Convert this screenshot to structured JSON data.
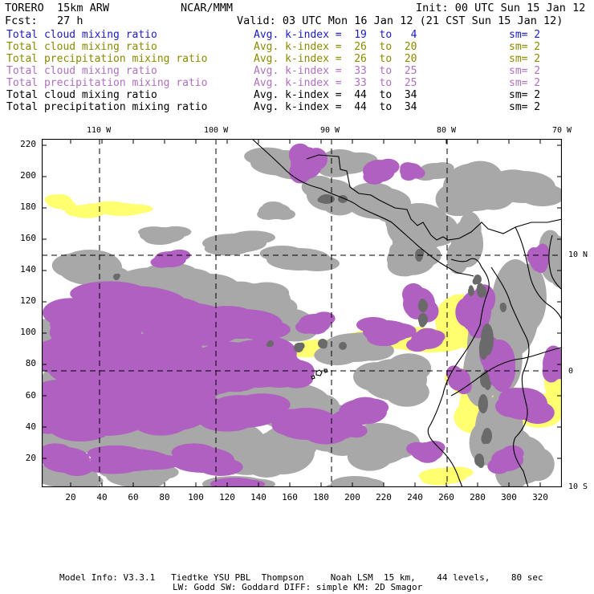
{
  "header": {
    "model": "TORERO  15km ARW",
    "org": "NCAR/MMM",
    "init": "Init: 00 UTC Sun 15 Jan 12",
    "fcst": "Fcst:   27 h",
    "valid": "Valid: 03 UTC Mon 16 Jan 12 (21 CST Sun 15 Jan 12)"
  },
  "fields": [
    {
      "name": "Total cloud mixing ratio",
      "kidx": "Avg. k-index =  19  to   4",
      "sm": "sm= 2",
      "color": "#1a1acc"
    },
    {
      "name": "Total cloud mixing ratio",
      "kidx": "Avg. k-index =  26  to  20",
      "sm": "sm= 2",
      "color": "#8a8a00"
    },
    {
      "name": "Total precipitation mixing ratio",
      "kidx": "Avg. k-index =  26  to  20",
      "sm": "sm= 2",
      "color": "#8a8a00"
    },
    {
      "name": "Total cloud mixing ratio",
      "kidx": "Avg. k-index =  33  to  25",
      "sm": "sm= 2",
      "color": "#b070c0"
    },
    {
      "name": "Total precipitation mixing ratio",
      "kidx": "Avg. k-index =  33  to  25",
      "sm": "sm= 2",
      "color": "#b070c0"
    },
    {
      "name": "Total cloud mixing ratio",
      "kidx": "Avg. k-index =  44  to  34",
      "sm": "sm= 2",
      "color": "#000000"
    },
    {
      "name": "Total precipitation mixing ratio",
      "kidx": "Avg. k-index =  44  to  34",
      "sm": "sm= 2",
      "color": "#000000"
    }
  ],
  "map": {
    "x_ticks": [
      "20",
      "40",
      "60",
      "80",
      "100",
      "120",
      "140",
      "160",
      "180",
      "200",
      "220",
      "240",
      "260",
      "280",
      "300",
      "320"
    ],
    "y_ticks": [
      "20",
      "40",
      "60",
      "80",
      "100",
      "120",
      "140",
      "160",
      "180",
      "200",
      "220"
    ],
    "lon_labels": [
      "110 W",
      "100 W",
      "90 W",
      "80 W",
      "70 W"
    ],
    "lat_labels": [
      "10 N",
      "0",
      "10 S"
    ],
    "colors": {
      "gray": "#a8a8a8",
      "dark": "#6a6a6a",
      "purple": "#b060c0",
      "yellow": "#ffff70",
      "cyan": "#c8f0ff"
    }
  },
  "footer": {
    "line1": "Model Info: V3.3.1   Tiedtke YSU PBL  Thompson     Noah LSM  15 km,    44 levels,    80 sec",
    "line2": "LW: Godd SW: Goddard DIFF: simple KM: 2D Smagor"
  }
}
